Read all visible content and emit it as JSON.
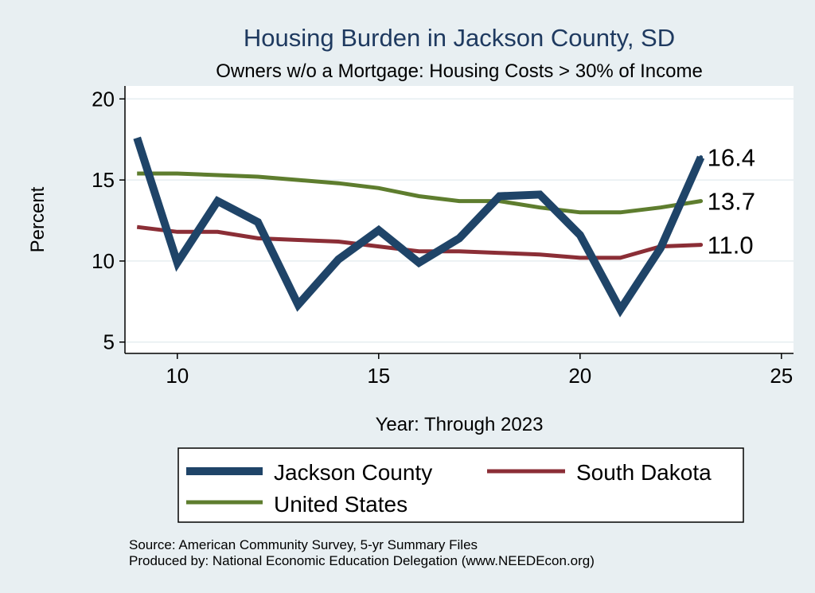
{
  "chart_data": {
    "type": "line",
    "title": "Housing Burden in Jackson County, SD",
    "subtitle": "Owners w/o a Mortgage: Housing Costs > 30% of Income",
    "xlabel": "Year: Through 2023",
    "ylabel": "Percent",
    "xlim": [
      8.7,
      25.3
    ],
    "ylim": [
      4.3,
      20.8
    ],
    "xticks": [
      10,
      15,
      20,
      25
    ],
    "yticks": [
      5,
      10,
      15,
      20
    ],
    "grid": true,
    "legend_position": "bottom",
    "series": [
      {
        "name": "Jackson County",
        "color": "#1f4468",
        "x": [
          9,
          10,
          11,
          12,
          13,
          14,
          15,
          16,
          17,
          18,
          19,
          20,
          21,
          22,
          23
        ],
        "y": [
          17.6,
          9.9,
          13.7,
          12.4,
          7.3,
          10.1,
          11.9,
          9.9,
          11.4,
          14.0,
          14.1,
          11.6,
          7.0,
          10.8,
          16.4
        ],
        "end_label": "16.4"
      },
      {
        "name": "South Dakota",
        "color": "#8b2e36",
        "x": [
          9,
          10,
          11,
          12,
          13,
          14,
          15,
          16,
          17,
          18,
          19,
          20,
          21,
          22,
          23
        ],
        "y": [
          12.1,
          11.8,
          11.8,
          11.4,
          11.3,
          11.2,
          10.9,
          10.6,
          10.6,
          10.5,
          10.4,
          10.2,
          10.2,
          10.9,
          11.0
        ],
        "end_label": "11.0"
      },
      {
        "name": "United States",
        "color": "#5e7d2e",
        "x": [
          9,
          10,
          11,
          12,
          13,
          14,
          15,
          16,
          17,
          18,
          19,
          20,
          21,
          22,
          23
        ],
        "y": [
          15.4,
          15.4,
          15.3,
          15.2,
          15.0,
          14.8,
          14.5,
          14.0,
          13.7,
          13.7,
          13.3,
          13.0,
          13.0,
          13.3,
          13.7
        ],
        "end_label": "13.7"
      }
    ]
  },
  "footer": {
    "source": "Source: American Community Survey, 5-yr Summary Files",
    "produced_by": "Produced by: National Economic Education Delegation (www.NEEDEcon.org)"
  }
}
